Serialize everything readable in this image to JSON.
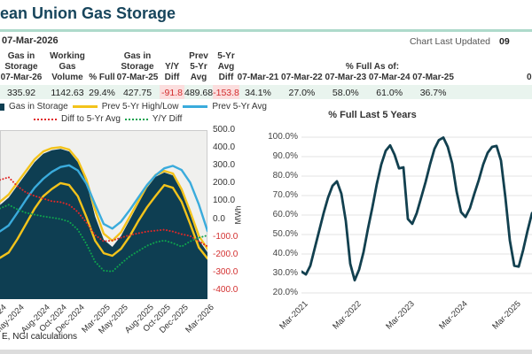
{
  "header": {
    "title": "ean Union Gas Storage",
    "as_of_date": "07-Mar-2026",
    "updated_label": "Chart Last Updated",
    "updated_value": "09"
  },
  "summary_table": {
    "columns": [
      {
        "header": [
          "Gas in",
          "Storage",
          "07-Mar-26"
        ],
        "value": "335.92",
        "negative": false
      },
      {
        "header": [
          "Working",
          "Gas",
          "Volume"
        ],
        "value": "1142.63",
        "negative": false
      },
      {
        "header": [
          "",
          "",
          "% Full"
        ],
        "value": "29.4%",
        "negative": false
      },
      {
        "header": [
          "Gas in",
          "Storage",
          "07-Mar-25"
        ],
        "value": "427.75",
        "negative": false
      },
      {
        "header": [
          "",
          "Y/Y",
          "Diff"
        ],
        "value": "-91.8",
        "negative": true
      },
      {
        "header": [
          "Prev",
          "5-Yr",
          "Avg"
        ],
        "value": "489.68",
        "negative": false
      },
      {
        "header": [
          "5-Yr",
          "Avg",
          "Diff"
        ],
        "value": "-153.8",
        "negative": true
      }
    ],
    "pct_full_group": {
      "label": "% Full As of:",
      "columns": [
        {
          "date": "07-Mar-21",
          "value": "34.1%"
        },
        {
          "date": "07-Mar-22",
          "value": "27.0%"
        },
        {
          "date": "07-Mar-23",
          "value": "58.0%"
        },
        {
          "date": "07-Mar-24",
          "value": "61.0%"
        },
        {
          "date": "07-Mar-25",
          "value": "36.7%"
        }
      ],
      "partial_next": "0"
    }
  },
  "chart_data": [
    {
      "type": "area+line",
      "name": "storage-history",
      "ylabel_right": "MWh",
      "legend": [
        "Gas in Storage",
        "Prev 5-Yr High/Low",
        "Prev 5-Yr Avg",
        "Diff to 5-Yr Avg",
        "Y/Y Diff"
      ],
      "x_monthly": [
        "Mar-2024",
        "Apr-2024",
        "May-2024",
        "Jun-2024",
        "Jul-2024",
        "Aug-2024",
        "Sep-2024",
        "Oct-2024",
        "Nov-2024",
        "Dec-2024",
        "Jan-2025",
        "Feb-2025",
        "Mar-2025",
        "Apr-2025",
        "May-2025",
        "Jun-2025",
        "Jul-2025",
        "Aug-2025",
        "Sep-2025",
        "Oct-2025",
        "Nov-2025",
        "Dec-2025",
        "Jan-2026",
        "Feb-2026",
        "Mar-2026"
      ],
      "x_ticks": [
        "Mar-2024",
        "May-2024",
        "Aug-2024",
        "Oct-2024",
        "Dec-2024",
        "Mar-2025",
        "May-2025",
        "Aug-2025",
        "Oct-2025",
        "Dec-2025",
        "Mar-2026"
      ],
      "x_tick_months": [
        0,
        2,
        5,
        7,
        9,
        12,
        14,
        17,
        19,
        21,
        24
      ],
      "right_axis": {
        "max": 500,
        "min": -400,
        "plot_min": -450,
        "step": 100
      },
      "hidden_axis_max": 1215,
      "series": [
        {
          "name": "Gas in Storage",
          "style": "area",
          "axis": "volume",
          "values": [
            676,
            730,
            815,
            900,
            985,
            1045,
            1070,
            1080,
            1062,
            985,
            840,
            594,
            428,
            375,
            455,
            570,
            685,
            800,
            880,
            910,
            890,
            775,
            610,
            425,
            336
          ]
        },
        {
          "name": "Prev 5-Yr High",
          "style": "line",
          "axis": "volume",
          "values": [
            700,
            752,
            838,
            922,
            1005,
            1062,
            1085,
            1092,
            1075,
            1000,
            860,
            640,
            470,
            420,
            480,
            592,
            703,
            815,
            893,
            922,
            903,
            790,
            630,
            455,
            360
          ]
        },
        {
          "name": "Prev 5-Yr Low",
          "style": "line",
          "axis": "volume",
          "values": [
            297,
            335,
            430,
            540,
            650,
            740,
            792,
            834,
            820,
            740,
            590,
            420,
            330,
            312,
            362,
            452,
            562,
            660,
            742,
            820,
            800,
            700,
            540,
            370,
            292
          ]
        },
        {
          "name": "Prev 5-Yr Avg",
          "style": "line",
          "axis": "volume",
          "values": [
            487,
            530,
            620,
            715,
            800,
            865,
            915,
            950,
            962,
            925,
            830,
            680,
            540,
            507,
            557,
            640,
            730,
            820,
            890,
            940,
            958,
            928,
            838,
            680,
            490
          ]
        },
        {
          "name": "Diff to 5-Yr Avg",
          "style": "dotted",
          "axis": "right",
          "values": [
            220,
            235,
            185,
            150,
            130,
            115,
            100,
            95,
            80,
            40,
            -20,
            -90,
            -125,
            -120,
            -105,
            -90,
            -80,
            -70,
            -65,
            -60,
            -70,
            -85,
            -95,
            -125,
            -153.8
          ]
        },
        {
          "name": "Y/Y Diff",
          "style": "dotted",
          "axis": "right",
          "values": [
            60,
            80,
            55,
            35,
            25,
            15,
            8,
            0,
            -15,
            -60,
            -140,
            -240,
            -290,
            -295,
            -250,
            -210,
            -180,
            -150,
            -130,
            -120,
            -135,
            -155,
            -125,
            -105,
            -91.8
          ]
        }
      ]
    },
    {
      "type": "line",
      "title": "% Full Last 5 Years",
      "x_start": "Mar-2021",
      "x_interval": "monthly",
      "values_pct": [
        31,
        29.5,
        34,
        43,
        52,
        61,
        69,
        75,
        77.3,
        71,
        57,
        35,
        26.5,
        32,
        41,
        53,
        64,
        76,
        86,
        93,
        95.8,
        91,
        84,
        84.5,
        58,
        55.5,
        61,
        69,
        77,
        86,
        94,
        98.5,
        99.8,
        95,
        86.5,
        72,
        61.5,
        59,
        63.5,
        71,
        78,
        86,
        92,
        95,
        95.5,
        88,
        69,
        47,
        34,
        33.5,
        42,
        52,
        61
      ],
      "y_axis": {
        "min": 20,
        "max": 100,
        "step": 10
      },
      "x_ticks": [
        "Mar-2021",
        "Mar-2022",
        "Mar-2023",
        "Mar-2024",
        "Mar-2025"
      ],
      "x_tick_months": [
        0,
        12,
        24,
        36,
        48
      ]
    }
  ],
  "colors": {
    "title": "#17455c",
    "accent_rule": "#aedacb",
    "area_fill": "#0e3e52",
    "yellow_band": "#f3c31b",
    "blue_avg": "#3aabdc",
    "red_diff": "#e02828",
    "green_yy": "#0fa24e",
    "pct_line": "#12404f",
    "negative": "#d32f2f",
    "row_stripe": "#e9f4ee",
    "negative_bg": "#fbdede",
    "plot_bg": "#f0f0ee",
    "gridline": "#e3e3e3"
  },
  "footer": {
    "source": "E, NGI calculations"
  }
}
